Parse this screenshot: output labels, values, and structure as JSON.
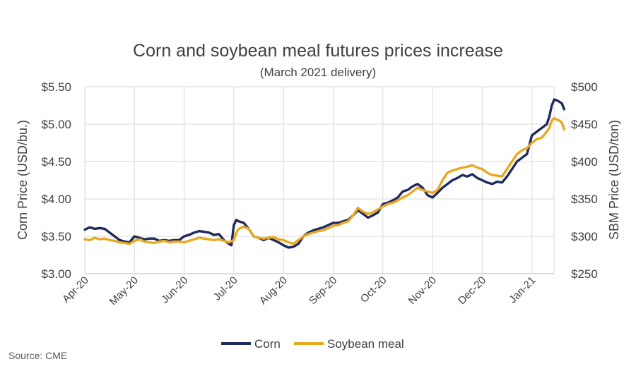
{
  "chart_data": {
    "type": "line",
    "title": "Corn and soybean meal futures prices increase",
    "subtitle": "(March 2021 delivery)",
    "ylabel_left": "Corn Price (USD/bu.)",
    "ylabel_right": "SBM Price (USD/ton)",
    "source": "Source: CME",
    "y_left": {
      "lim": [
        3.0,
        5.5
      ],
      "ticks": [
        3.0,
        3.5,
        4.0,
        4.5,
        5.0,
        5.5
      ],
      "tick_labels": [
        "$3.00",
        "$3.50",
        "$4.00",
        "$4.50",
        "$5.00",
        "$5.50"
      ]
    },
    "y_right": {
      "lim": [
        250,
        500
      ],
      "ticks": [
        250,
        300,
        350,
        400,
        450,
        500
      ],
      "tick_labels": [
        "$250",
        "$300",
        "$350",
        "$400",
        "$450",
        "$500"
      ]
    },
    "x_ticks": [
      "Apr-20",
      "May-20",
      "Jun-20",
      "Jul-20",
      "Aug-20",
      "Sep-20",
      "Oct-20",
      "Nov-20",
      "Dec-20",
      "Jan-21"
    ],
    "x_range_months": [
      0,
      9.67
    ],
    "grid": true,
    "legend_position": "bottom",
    "series": [
      {
        "name": "Corn",
        "axis": "left",
        "color": "#1f2a5c",
        "points": [
          [
            0.0,
            3.59
          ],
          [
            0.1,
            3.62
          ],
          [
            0.2,
            3.6
          ],
          [
            0.3,
            3.61
          ],
          [
            0.4,
            3.6
          ],
          [
            0.5,
            3.55
          ],
          [
            0.6,
            3.5
          ],
          [
            0.7,
            3.45
          ],
          [
            0.8,
            3.43
          ],
          [
            0.9,
            3.42
          ],
          [
            1.0,
            3.5
          ],
          [
            1.1,
            3.48
          ],
          [
            1.2,
            3.46
          ],
          [
            1.3,
            3.47
          ],
          [
            1.4,
            3.47
          ],
          [
            1.5,
            3.44
          ],
          [
            1.6,
            3.45
          ],
          [
            1.7,
            3.44
          ],
          [
            1.8,
            3.45
          ],
          [
            1.9,
            3.45
          ],
          [
            2.0,
            3.5
          ],
          [
            2.1,
            3.52
          ],
          [
            2.2,
            3.55
          ],
          [
            2.3,
            3.57
          ],
          [
            2.4,
            3.56
          ],
          [
            2.5,
            3.55
          ],
          [
            2.6,
            3.52
          ],
          [
            2.7,
            3.53
          ],
          [
            2.8,
            3.45
          ],
          [
            2.9,
            3.4
          ],
          [
            2.95,
            3.38
          ],
          [
            3.0,
            3.65
          ],
          [
            3.05,
            3.72
          ],
          [
            3.1,
            3.7
          ],
          [
            3.2,
            3.68
          ],
          [
            3.3,
            3.6
          ],
          [
            3.4,
            3.5
          ],
          [
            3.5,
            3.48
          ],
          [
            3.6,
            3.45
          ],
          [
            3.7,
            3.48
          ],
          [
            3.8,
            3.45
          ],
          [
            3.9,
            3.42
          ],
          [
            4.0,
            3.38
          ],
          [
            4.1,
            3.35
          ],
          [
            4.2,
            3.36
          ],
          [
            4.3,
            3.4
          ],
          [
            4.4,
            3.5
          ],
          [
            4.5,
            3.55
          ],
          [
            4.6,
            3.58
          ],
          [
            4.7,
            3.6
          ],
          [
            4.8,
            3.62
          ],
          [
            4.9,
            3.65
          ],
          [
            5.0,
            3.68
          ],
          [
            5.1,
            3.68
          ],
          [
            5.2,
            3.7
          ],
          [
            5.3,
            3.72
          ],
          [
            5.4,
            3.78
          ],
          [
            5.5,
            3.85
          ],
          [
            5.6,
            3.8
          ],
          [
            5.7,
            3.75
          ],
          [
            5.8,
            3.78
          ],
          [
            5.9,
            3.82
          ],
          [
            6.0,
            3.93
          ],
          [
            6.1,
            3.95
          ],
          [
            6.2,
            3.98
          ],
          [
            6.3,
            4.02
          ],
          [
            6.4,
            4.1
          ],
          [
            6.5,
            4.12
          ],
          [
            6.6,
            4.17
          ],
          [
            6.7,
            4.2
          ],
          [
            6.8,
            4.15
          ],
          [
            6.9,
            4.05
          ],
          [
            7.0,
            4.02
          ],
          [
            7.1,
            4.08
          ],
          [
            7.2,
            4.15
          ],
          [
            7.3,
            4.2
          ],
          [
            7.4,
            4.25
          ],
          [
            7.5,
            4.28
          ],
          [
            7.6,
            4.32
          ],
          [
            7.7,
            4.3
          ],
          [
            7.8,
            4.33
          ],
          [
            7.9,
            4.28
          ],
          [
            8.0,
            4.25
          ],
          [
            8.1,
            4.22
          ],
          [
            8.2,
            4.2
          ],
          [
            8.3,
            4.23
          ],
          [
            8.4,
            4.22
          ],
          [
            8.5,
            4.3
          ],
          [
            8.6,
            4.4
          ],
          [
            8.7,
            4.5
          ],
          [
            8.8,
            4.55
          ],
          [
            8.9,
            4.6
          ],
          [
            9.0,
            4.85
          ],
          [
            9.1,
            4.9
          ],
          [
            9.2,
            4.95
          ],
          [
            9.3,
            5.0
          ],
          [
            9.35,
            5.1
          ],
          [
            9.4,
            5.25
          ],
          [
            9.45,
            5.33
          ],
          [
            9.5,
            5.32
          ],
          [
            9.55,
            5.3
          ],
          [
            9.6,
            5.28
          ],
          [
            9.65,
            5.2
          ]
        ]
      },
      {
        "name": "Soybean meal",
        "axis": "right",
        "color": "#e8a820",
        "points": [
          [
            0.0,
            296
          ],
          [
            0.1,
            295
          ],
          [
            0.2,
            298
          ],
          [
            0.3,
            296
          ],
          [
            0.4,
            297
          ],
          [
            0.5,
            295
          ],
          [
            0.6,
            294
          ],
          [
            0.7,
            292
          ],
          [
            0.8,
            291
          ],
          [
            0.9,
            290
          ],
          [
            1.0,
            294
          ],
          [
            1.1,
            296
          ],
          [
            1.2,
            293
          ],
          [
            1.3,
            292
          ],
          [
            1.4,
            291
          ],
          [
            1.5,
            293
          ],
          [
            1.6,
            294
          ],
          [
            1.7,
            292
          ],
          [
            1.8,
            293
          ],
          [
            1.9,
            293
          ],
          [
            2.0,
            292
          ],
          [
            2.1,
            294
          ],
          [
            2.2,
            296
          ],
          [
            2.3,
            298
          ],
          [
            2.4,
            297
          ],
          [
            2.5,
            296
          ],
          [
            2.6,
            295
          ],
          [
            2.7,
            296
          ],
          [
            2.8,
            294
          ],
          [
            2.9,
            292
          ],
          [
            3.0,
            295
          ],
          [
            3.05,
            305
          ],
          [
            3.1,
            310
          ],
          [
            3.2,
            313
          ],
          [
            3.3,
            310
          ],
          [
            3.4,
            300
          ],
          [
            3.5,
            298
          ],
          [
            3.6,
            297
          ],
          [
            3.7,
            298
          ],
          [
            3.8,
            299
          ],
          [
            3.9,
            296
          ],
          [
            4.0,
            295
          ],
          [
            4.1,
            292
          ],
          [
            4.2,
            290
          ],
          [
            4.3,
            295
          ],
          [
            4.4,
            300
          ],
          [
            4.5,
            303
          ],
          [
            4.6,
            305
          ],
          [
            4.7,
            307
          ],
          [
            4.8,
            308
          ],
          [
            4.9,
            311
          ],
          [
            5.0,
            314
          ],
          [
            5.1,
            315
          ],
          [
            5.2,
            318
          ],
          [
            5.3,
            320
          ],
          [
            5.4,
            328
          ],
          [
            5.5,
            338
          ],
          [
            5.6,
            333
          ],
          [
            5.7,
            330
          ],
          [
            5.8,
            332
          ],
          [
            5.9,
            336
          ],
          [
            6.0,
            340
          ],
          [
            6.1,
            343
          ],
          [
            6.2,
            345
          ],
          [
            6.3,
            348
          ],
          [
            6.4,
            352
          ],
          [
            6.5,
            355
          ],
          [
            6.6,
            360
          ],
          [
            6.7,
            365
          ],
          [
            6.8,
            362
          ],
          [
            6.9,
            360
          ],
          [
            7.0,
            358
          ],
          [
            7.1,
            362
          ],
          [
            7.2,
            375
          ],
          [
            7.3,
            385
          ],
          [
            7.4,
            388
          ],
          [
            7.5,
            390
          ],
          [
            7.6,
            392
          ],
          [
            7.7,
            393
          ],
          [
            7.8,
            395
          ],
          [
            7.9,
            392
          ],
          [
            8.0,
            390
          ],
          [
            8.1,
            385
          ],
          [
            8.2,
            382
          ],
          [
            8.3,
            381
          ],
          [
            8.4,
            380
          ],
          [
            8.5,
            390
          ],
          [
            8.6,
            400
          ],
          [
            8.7,
            410
          ],
          [
            8.8,
            415
          ],
          [
            8.9,
            418
          ],
          [
            9.0,
            425
          ],
          [
            9.1,
            430
          ],
          [
            9.2,
            432
          ],
          [
            9.3,
            440
          ],
          [
            9.35,
            445
          ],
          [
            9.4,
            455
          ],
          [
            9.45,
            458
          ],
          [
            9.5,
            456
          ],
          [
            9.55,
            455
          ],
          [
            9.6,
            452
          ],
          [
            9.65,
            443
          ]
        ]
      }
    ]
  }
}
